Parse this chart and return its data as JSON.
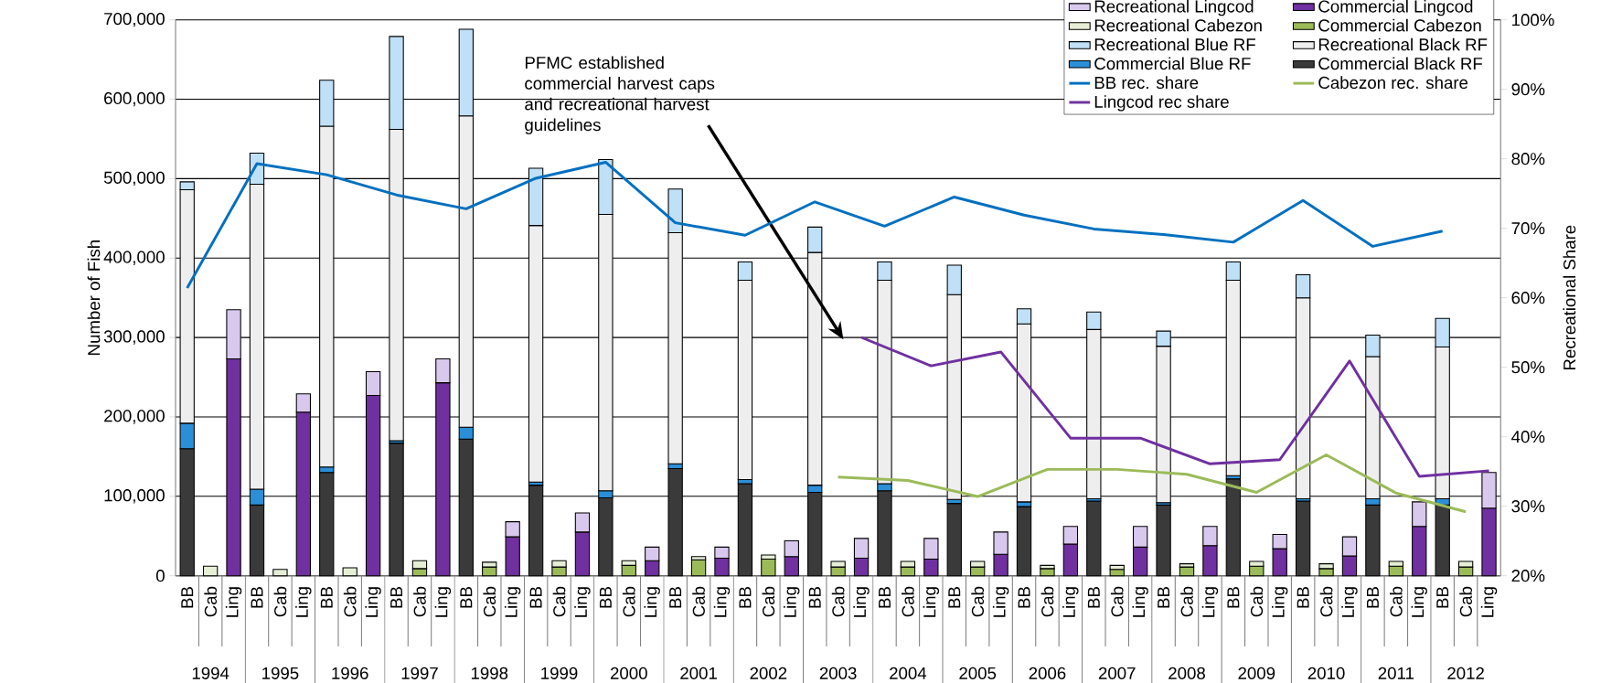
{
  "chart_data": {
    "type": "bar",
    "stacked": true,
    "grid": "y",
    "legend": "top right",
    "ylabel": "Number of Fish",
    "y2label": "Recreational Share",
    "categories": [
      "BB",
      "Cab",
      "Ling",
      "BB",
      "Cab",
      "Ling",
      "BB",
      "Cab",
      "Ling",
      "BB",
      "Cab",
      "Ling",
      "BB",
      "Cab",
      "Ling",
      "BB",
      "Cab",
      "Ling",
      "BB",
      "Cab",
      "Ling",
      "BB",
      "Cab",
      "Ling",
      "BB",
      "Cab",
      "Ling",
      "BB",
      "Cab",
      "Ling",
      "BB",
      "Cab",
      "Ling",
      "BB",
      "Cab",
      "Ling",
      "BB",
      "Cab",
      "Ling",
      "BB",
      "Cab",
      "Ling",
      "BB",
      "Cab",
      "Ling",
      "BB",
      "Cab",
      "Ling",
      "BB",
      "Cab",
      "Ling",
      "BB",
      "Cab",
      "Ling",
      "BB",
      "Cab",
      "Ling"
    ],
    "ylim": [
      0,
      700000
    ],
    "yticks": [
      0,
      {
        "value": 100000,
        "label": "100,000"
      },
      {
        "value": 200000,
        "label": "200,000"
      },
      {
        "value": 300000,
        "label": "300,000"
      },
      {
        "value": 400000,
        "label": "400,000"
      },
      {
        "value": 500000,
        "label": "500,000"
      },
      {
        "value": 600000,
        "label": "600,000"
      },
      {
        "value": 700000,
        "label": "700,000"
      }
    ],
    "y2lim": [
      20,
      100
    ],
    "y2ticks": [
      {
        "value": 20,
        "label": "20%"
      },
      {
        "value": 30,
        "label": "30%"
      },
      {
        "value": 40,
        "label": "40%"
      },
      {
        "value": 50,
        "label": "50%"
      },
      {
        "value": 60,
        "label": "60%"
      },
      {
        "value": 70,
        "label": "70%"
      },
      {
        "value": 80,
        "label": "80%"
      },
      {
        "value": 90,
        "label": "90%"
      },
      {
        "value": 100,
        "label": "100%"
      }
    ],
    "series": [
      {
        "name": "Commercial Black RF",
        "color": "#3a3a3a",
        "values": [
          160000,
          null,
          null,
          89000,
          null,
          null,
          130000,
          null,
          null,
          167000,
          null,
          null,
          172000,
          null,
          null,
          114000,
          null,
          null,
          98000,
          null,
          null,
          135000,
          null,
          null,
          116000,
          null,
          null,
          105000,
          null,
          null,
          107000,
          null,
          null,
          91000,
          null,
          null,
          87000,
          null,
          null,
          94000,
          null,
          null,
          89000,
          null,
          null,
          122000,
          null,
          null,
          94000,
          null,
          null,
          89000,
          null,
          null,
          89000,
          null,
          null
        ]
      },
      {
        "name": "Commercial Blue RF",
        "color": "#2b8fd8",
        "values": [
          32000,
          null,
          null,
          20000,
          null,
          null,
          7000,
          null,
          null,
          3000,
          null,
          null,
          15000,
          null,
          null,
          4000,
          null,
          null,
          9000,
          null,
          null,
          6000,
          null,
          null,
          5000,
          null,
          null,
          9000,
          null,
          null,
          9000,
          null,
          null,
          5000,
          null,
          null,
          6000,
          null,
          null,
          3000,
          null,
          null,
          3000,
          null,
          null,
          4000,
          null,
          null,
          3000,
          null,
          null,
          8000,
          null,
          null,
          8000,
          null,
          null
        ]
      },
      {
        "name": "Recreational Black RF",
        "color": "#eeeeee",
        "values": [
          294000,
          null,
          null,
          384000,
          null,
          null,
          429000,
          null,
          null,
          392000,
          null,
          null,
          392000,
          null,
          null,
          323000,
          null,
          null,
          348000,
          null,
          null,
          291000,
          null,
          null,
          251000,
          null,
          null,
          293000,
          null,
          null,
          256000,
          null,
          null,
          258000,
          null,
          null,
          224000,
          null,
          null,
          213000,
          null,
          null,
          197000,
          null,
          null,
          246000,
          null,
          null,
          253000,
          null,
          null,
          179000,
          null,
          null,
          191000,
          null,
          null
        ]
      },
      {
        "name": "Recreational Blue RF",
        "color": "#bfe0f7",
        "values": [
          10000,
          null,
          null,
          39000,
          null,
          null,
          58000,
          null,
          null,
          117000,
          null,
          null,
          109000,
          null,
          null,
          72000,
          null,
          null,
          69000,
          null,
          null,
          55000,
          null,
          null,
          23000,
          null,
          null,
          32000,
          null,
          null,
          23000,
          null,
          null,
          37000,
          null,
          null,
          19000,
          null,
          null,
          22000,
          null,
          null,
          19000,
          null,
          null,
          23000,
          null,
          null,
          29000,
          null,
          null,
          27000,
          null,
          null,
          36000,
          null,
          null
        ]
      },
      {
        "name": "Commercial Cabezon",
        "color": "#9bbb59",
        "values": [
          null,
          null,
          null,
          null,
          null,
          null,
          null,
          null,
          null,
          null,
          9000,
          null,
          null,
          11000,
          null,
          null,
          11000,
          null,
          null,
          13000,
          null,
          null,
          20000,
          null,
          null,
          21000,
          null,
          null,
          11000,
          null,
          null,
          11000,
          null,
          null,
          11000,
          null,
          null,
          9000,
          null,
          null,
          8000,
          null,
          null,
          11000,
          null,
          null,
          12000,
          null,
          null,
          9000,
          null,
          null,
          12000,
          null,
          null,
          11000,
          null
        ]
      },
      {
        "name": "Recreational Cabezon",
        "color": "#e6efd5",
        "values": [
          null,
          12000,
          null,
          null,
          8000,
          null,
          null,
          10000,
          null,
          null,
          10000,
          null,
          null,
          6000,
          null,
          null,
          8000,
          null,
          null,
          6000,
          null,
          null,
          4000,
          null,
          null,
          5000,
          null,
          null,
          7000,
          null,
          null,
          7000,
          null,
          null,
          7000,
          null,
          null,
          4000,
          null,
          null,
          5000,
          null,
          null,
          4000,
          null,
          null,
          6000,
          null,
          null,
          6000,
          null,
          null,
          6000,
          null,
          null,
          7000,
          null
        ]
      },
      {
        "name": "Commercial Lingcod",
        "color": "#7030a0",
        "values": [
          null,
          null,
          273000,
          null,
          null,
          206000,
          null,
          null,
          227000,
          null,
          null,
          243000,
          null,
          null,
          49000,
          null,
          null,
          55000,
          null,
          null,
          19000,
          null,
          null,
          22000,
          null,
          null,
          24000,
          null,
          null,
          22000,
          null,
          null,
          21000,
          null,
          null,
          27000,
          null,
          null,
          40000,
          null,
          null,
          36000,
          null,
          null,
          38000,
          null,
          null,
          34000,
          null,
          null,
          25000,
          null,
          null,
          62000,
          null,
          null,
          85000
        ]
      },
      {
        "name": "Recreational Lingcod",
        "color": "#d9c8ee",
        "values": [
          null,
          null,
          62000,
          null,
          null,
          23000,
          null,
          null,
          30000,
          null,
          null,
          30000,
          null,
          null,
          19000,
          null,
          null,
          24000,
          null,
          null,
          17000,
          null,
          null,
          14000,
          null,
          null,
          20000,
          null,
          null,
          25000,
          null,
          null,
          26000,
          null,
          null,
          28000,
          null,
          null,
          22000,
          null,
          null,
          26000,
          null,
          null,
          24000,
          null,
          null,
          18000,
          null,
          null,
          24000,
          null,
          null,
          31000,
          null,
          null,
          45000
        ]
      },
      {
        "name": "BB rec. share",
        "type": "line",
        "axis": "y2",
        "color": "#0070c0",
        "values": [
          61.4,
          null,
          null,
          79.3,
          null,
          null,
          77.7,
          null,
          null,
          74.8,
          null,
          null,
          72.8,
          null,
          null,
          77.2,
          null,
          null,
          79.5,
          null,
          null,
          70.8,
          null,
          null,
          69.0,
          null,
          null,
          73.8,
          null,
          null,
          70.3,
          null,
          null,
          74.5,
          null,
          null,
          71.9,
          null,
          null,
          69.9,
          null,
          null,
          69.1,
          null,
          null,
          68.0,
          null,
          null,
          74.0,
          null,
          null,
          67.4,
          null,
          null,
          69.6,
          null,
          null
        ]
      },
      {
        "name": "Cabezon rec. share",
        "type": "line",
        "axis": "y2",
        "color": "#9bbb59",
        "values": [
          null,
          null,
          null,
          null,
          null,
          null,
          null,
          null,
          null,
          null,
          null,
          null,
          null,
          null,
          null,
          null,
          null,
          null,
          null,
          null,
          null,
          null,
          null,
          null,
          null,
          null,
          null,
          null,
          34.2,
          null,
          null,
          33.7,
          null,
          null,
          31.4,
          null,
          null,
          35.3,
          null,
          null,
          35.3,
          null,
          null,
          34.6,
          null,
          null,
          32.0,
          null,
          null,
          37.4,
          null,
          null,
          31.9,
          null,
          null,
          29.2,
          null
        ]
      },
      {
        "name": "Lingcod rec share",
        "type": "line",
        "axis": "y2",
        "color": "#7030a0",
        "values": [
          null,
          null,
          null,
          null,
          null,
          null,
          null,
          null,
          null,
          null,
          null,
          null,
          null,
          null,
          null,
          null,
          null,
          null,
          null,
          null,
          null,
          null,
          null,
          null,
          null,
          null,
          null,
          null,
          null,
          54.3,
          null,
          null,
          50.2,
          null,
          null,
          52.2,
          null,
          null,
          39.8,
          null,
          null,
          39.8,
          null,
          null,
          36.1,
          null,
          null,
          36.7,
          null,
          null,
          50.9,
          null,
          null,
          34.3,
          null,
          null,
          35.1
        ]
      }
    ],
    "annotations": [
      "PFMC established commercial harvest caps and recreational harvest guidelines",
      "1994",
      "1995",
      "1996",
      "1997",
      "1998",
      "1999",
      "2000",
      "2001",
      "2002",
      "2003",
      "2004",
      "2005",
      "2006",
      "2007",
      "2008",
      "2009",
      "2010",
      "2011",
      "2012"
    ]
  }
}
